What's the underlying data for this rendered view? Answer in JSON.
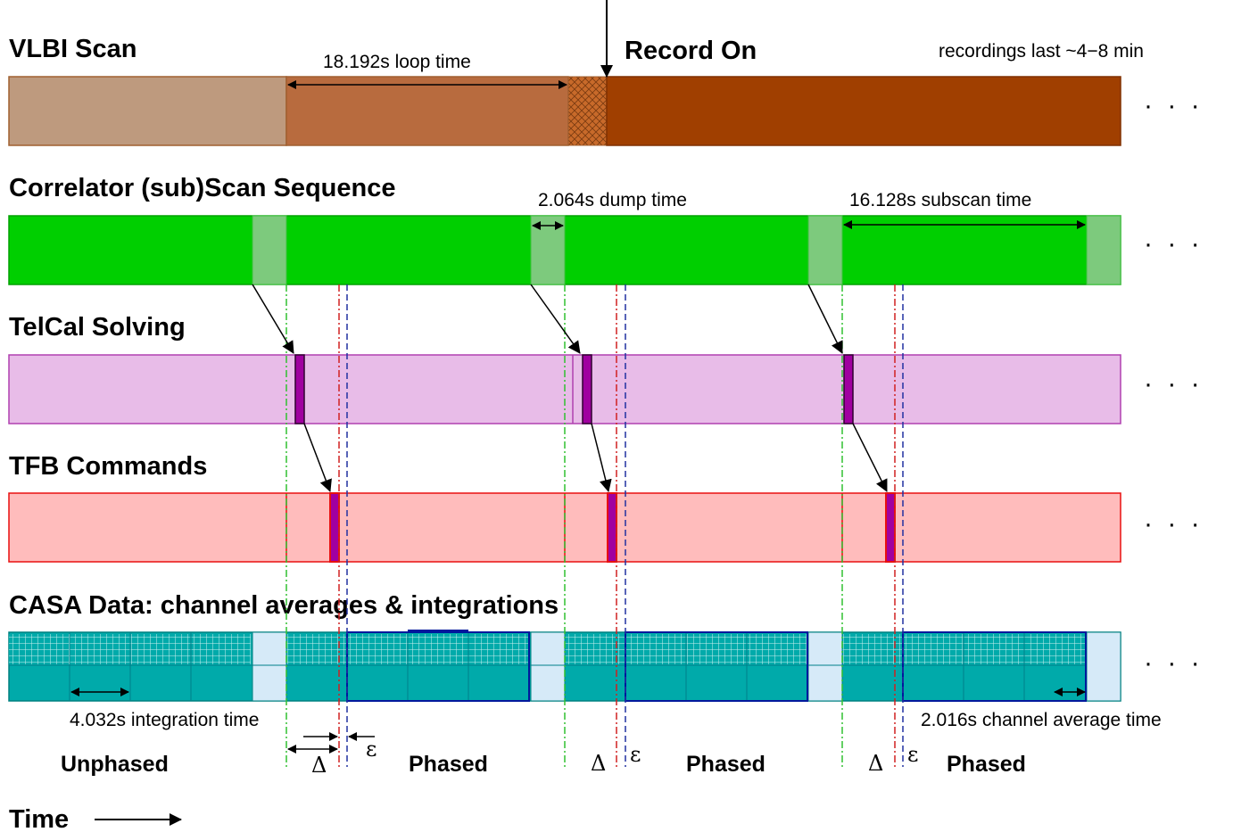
{
  "sections": {
    "vlbi": "VLBI Scan",
    "correlator": "Correlator (sub)Scan Sequence",
    "telcal": "TelCal Solving",
    "tfb": "TFB Commands",
    "casa": "CASA Data: channel averages & integrations"
  },
  "annotations": {
    "loop_time": "18.192s loop time",
    "record_on": "Record On",
    "recordings": "recordings last ~4−8 min",
    "dump_time": "2.064s dump time",
    "subscan_time": "16.128s subscan time",
    "integration_time": "4.032s integration time",
    "channel_avg_time": "2.016s channel average time",
    "time": "Time"
  },
  "phase_labels": {
    "unphased": "Unphased",
    "phased": "Phased",
    "delta": "Δ",
    "epsilon": "ε"
  },
  "ellipsis": "· · ·",
  "colors": {
    "vlbi_light": "#be9a7e",
    "vlbi_mid": "#b86b3e",
    "vlbi_dark": "#a03f00",
    "correlator": "#00cf00",
    "correlator_dump": "#7dca7d",
    "telcal": "#e8bce8",
    "telcal_border": "#b040b0",
    "telcal_solve": "#a000a0",
    "tfb": "#ffbcbc",
    "tfb_border": "#e81010",
    "casa_teal": "#00aaaa",
    "casa_gap": "#d6eaf8",
    "phased_border": "#00189c"
  }
}
